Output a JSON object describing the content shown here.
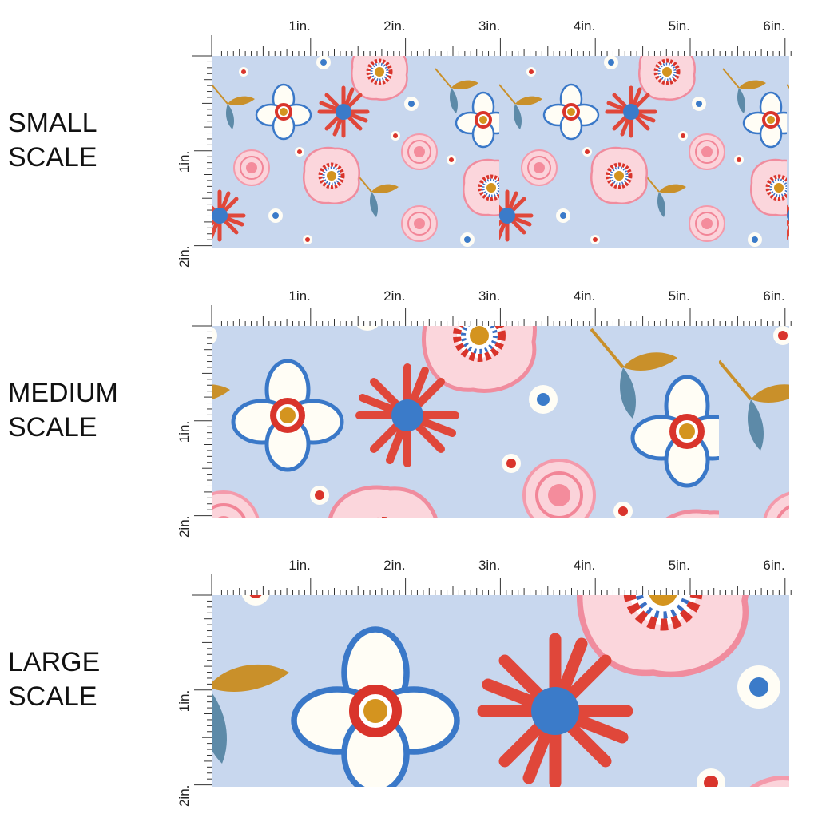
{
  "panels": [
    {
      "label": [
        "SMALL",
        "SCALE"
      ],
      "ruler": {
        "x": [
          "1in.",
          "2in.",
          "3in.",
          "4in.",
          "5in.",
          "6in."
        ],
        "y": [
          "1in.",
          "2in."
        ]
      }
    },
    {
      "label": [
        "MEDIUM",
        "SCALE"
      ],
      "ruler": {
        "x": [
          "1in.",
          "2in.",
          "3in.",
          "4in.",
          "5in.",
          "6in."
        ],
        "y": [
          "1in.",
          "2in."
        ]
      }
    },
    {
      "label": [
        "LARGE",
        "SCALE"
      ],
      "ruler": {
        "x": [
          "1in.",
          "2in.",
          "3in.",
          "4in.",
          "5in.",
          "6in."
        ],
        "y": [
          "1in.",
          "2in."
        ]
      }
    }
  ]
}
